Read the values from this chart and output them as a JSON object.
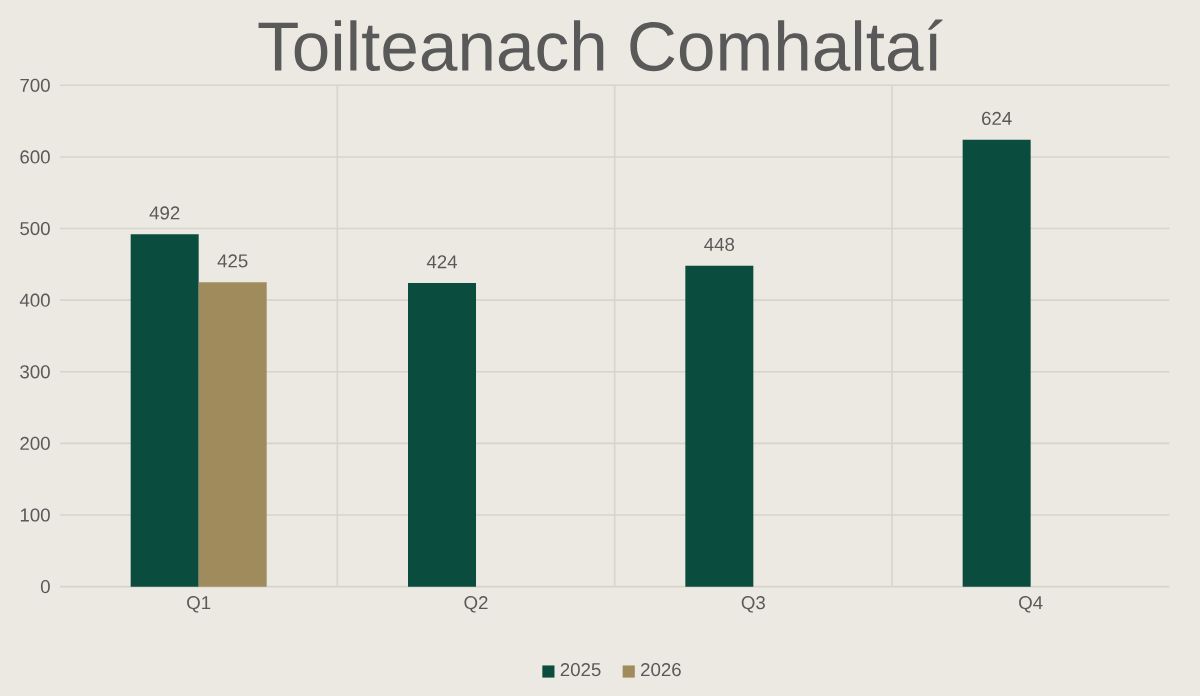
{
  "chart_data": {
    "type": "bar",
    "title": "Toilteanach Comhaltaí",
    "categories": [
      "Q1",
      "Q2",
      "Q3",
      "Q4"
    ],
    "series": [
      {
        "name": "2025",
        "color": "#0a4d3e",
        "values": [
          492,
          424,
          448,
          624
        ]
      },
      {
        "name": "2026",
        "color": "#a08b5c",
        "values": [
          425,
          null,
          null,
          null
        ]
      }
    ],
    "ylim": [
      0,
      700
    ],
    "yticks": [
      0,
      100,
      200,
      300,
      400,
      500,
      600,
      700
    ],
    "grid": true,
    "legend": "bottom",
    "data_labels": true
  }
}
